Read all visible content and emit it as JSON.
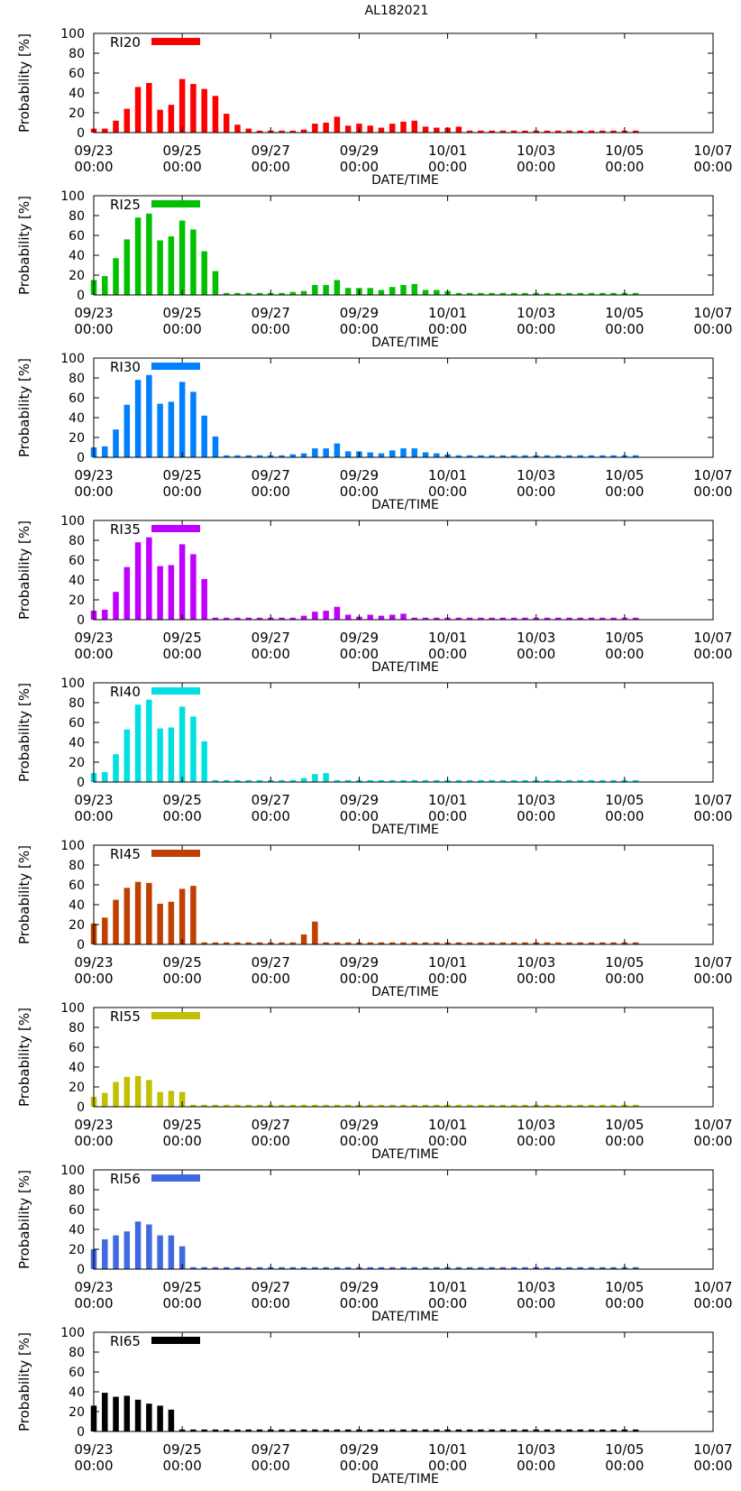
{
  "title": "AL182021",
  "chart_data": [
    {
      "type": "bar",
      "title": "RI20",
      "legend_label": "RI20",
      "color": "#ff0000",
      "xlabel": "DATE/TIME",
      "ylabel": "Probability [%]",
      "ylim": [
        0,
        100
      ],
      "yticks": [
        0,
        20,
        40,
        60,
        80,
        100
      ],
      "x_start_hours": 0,
      "x_range_hours": [
        0,
        336
      ],
      "bar_interval_hours": 6,
      "xticks": [
        {
          "hours": 0,
          "date": "09/23",
          "time": "00:00"
        },
        {
          "hours": 48,
          "date": "09/25",
          "time": "00:00"
        },
        {
          "hours": 96,
          "date": "09/27",
          "time": "00:00"
        },
        {
          "hours": 144,
          "date": "09/29",
          "time": "00:00"
        },
        {
          "hours": 192,
          "date": "10/01",
          "time": "00:00"
        },
        {
          "hours": 240,
          "date": "10/03",
          "time": "00:00"
        },
        {
          "hours": 288,
          "date": "10/05",
          "time": "00:00"
        },
        {
          "hours": 336,
          "date": "10/07",
          "time": "00:00"
        }
      ],
      "values": [
        4,
        4,
        12,
        24,
        46,
        50,
        23,
        28,
        54,
        49,
        44,
        37,
        19,
        8,
        4,
        2,
        2,
        2,
        2,
        3,
        9,
        10,
        16,
        7,
        9,
        7,
        5,
        9,
        11,
        12,
        6,
        5,
        5,
        6,
        2,
        2,
        2,
        2,
        2,
        2,
        2,
        2,
        2,
        2,
        2,
        2,
        2,
        2,
        2,
        2
      ]
    },
    {
      "type": "bar",
      "title": "RI25",
      "legend_label": "RI25",
      "color": "#00c000",
      "xlabel": "DATE/TIME",
      "ylabel": "Probability [%]",
      "ylim": [
        0,
        100
      ],
      "yticks": [
        0,
        20,
        40,
        60,
        80,
        100
      ],
      "x_start_hours": 0,
      "x_range_hours": [
        0,
        336
      ],
      "bar_interval_hours": 6,
      "xticks": [
        {
          "hours": 0,
          "date": "09/23",
          "time": "00:00"
        },
        {
          "hours": 48,
          "date": "09/25",
          "time": "00:00"
        },
        {
          "hours": 96,
          "date": "09/27",
          "time": "00:00"
        },
        {
          "hours": 144,
          "date": "09/29",
          "time": "00:00"
        },
        {
          "hours": 192,
          "date": "10/01",
          "time": "00:00"
        },
        {
          "hours": 240,
          "date": "10/03",
          "time": "00:00"
        },
        {
          "hours": 288,
          "date": "10/05",
          "time": "00:00"
        },
        {
          "hours": 336,
          "date": "10/07",
          "time": "00:00"
        }
      ],
      "values": [
        15,
        19,
        37,
        56,
        78,
        82,
        55,
        59,
        75,
        66,
        44,
        24,
        2,
        2,
        2,
        2,
        2,
        2,
        3,
        4,
        10,
        10,
        15,
        7,
        7,
        7,
        5,
        8,
        10,
        11,
        5,
        5,
        4,
        2,
        2,
        2,
        2,
        2,
        2,
        2,
        2,
        2,
        2,
        2,
        2,
        2,
        2,
        2,
        2,
        2
      ]
    },
    {
      "type": "bar",
      "title": "RI30",
      "legend_label": "RI30",
      "color": "#0080ff",
      "xlabel": "DATE/TIME",
      "ylabel": "Probability [%]",
      "ylim": [
        0,
        100
      ],
      "yticks": [
        0,
        20,
        40,
        60,
        80,
        100
      ],
      "x_start_hours": 0,
      "x_range_hours": [
        0,
        336
      ],
      "bar_interval_hours": 6,
      "xticks": [
        {
          "hours": 0,
          "date": "09/23",
          "time": "00:00"
        },
        {
          "hours": 48,
          "date": "09/25",
          "time": "00:00"
        },
        {
          "hours": 96,
          "date": "09/27",
          "time": "00:00"
        },
        {
          "hours": 144,
          "date": "09/29",
          "time": "00:00"
        },
        {
          "hours": 192,
          "date": "10/01",
          "time": "00:00"
        },
        {
          "hours": 240,
          "date": "10/03",
          "time": "00:00"
        },
        {
          "hours": 288,
          "date": "10/05",
          "time": "00:00"
        },
        {
          "hours": 336,
          "date": "10/07",
          "time": "00:00"
        }
      ],
      "values": [
        10,
        11,
        28,
        53,
        78,
        83,
        54,
        56,
        76,
        66,
        42,
        21,
        2,
        2,
        2,
        2,
        2,
        2,
        3,
        4,
        9,
        9,
        14,
        6,
        6,
        5,
        4,
        7,
        9,
        9,
        5,
        4,
        3,
        2,
        2,
        2,
        2,
        2,
        2,
        2,
        2,
        2,
        2,
        2,
        2,
        2,
        2,
        2,
        2,
        2
      ]
    },
    {
      "type": "bar",
      "title": "RI35",
      "legend_label": "RI35",
      "color": "#c000ff",
      "xlabel": "DATE/TIME",
      "ylabel": "Probability [%]",
      "ylim": [
        0,
        100
      ],
      "yticks": [
        0,
        20,
        40,
        60,
        80,
        100
      ],
      "x_start_hours": 0,
      "x_range_hours": [
        0,
        336
      ],
      "bar_interval_hours": 6,
      "xticks": [
        {
          "hours": 0,
          "date": "09/23",
          "time": "00:00"
        },
        {
          "hours": 48,
          "date": "09/25",
          "time": "00:00"
        },
        {
          "hours": 96,
          "date": "09/27",
          "time": "00:00"
        },
        {
          "hours": 144,
          "date": "09/29",
          "time": "00:00"
        },
        {
          "hours": 192,
          "date": "10/01",
          "time": "00:00"
        },
        {
          "hours": 240,
          "date": "10/03",
          "time": "00:00"
        },
        {
          "hours": 288,
          "date": "10/05",
          "time": "00:00"
        },
        {
          "hours": 336,
          "date": "10/07",
          "time": "00:00"
        }
      ],
      "values": [
        9,
        10,
        28,
        53,
        78,
        83,
        54,
        55,
        76,
        66,
        41,
        2,
        2,
        2,
        2,
        2,
        2,
        2,
        2,
        4,
        8,
        9,
        13,
        5,
        3,
        5,
        4,
        5,
        6,
        2,
        2,
        2,
        2,
        2,
        2,
        2,
        2,
        2,
        2,
        2,
        2,
        2,
        2,
        2,
        2,
        2,
        2,
        2,
        2,
        2
      ]
    },
    {
      "type": "bar",
      "title": "RI40",
      "legend_label": "RI40",
      "color": "#00e0e0",
      "xlabel": "DATE/TIME",
      "ylabel": "Probability [%]",
      "ylim": [
        0,
        100
      ],
      "yticks": [
        0,
        20,
        40,
        60,
        80,
        100
      ],
      "x_start_hours": 0,
      "x_range_hours": [
        0,
        336
      ],
      "bar_interval_hours": 6,
      "xticks": [
        {
          "hours": 0,
          "date": "09/23",
          "time": "00:00"
        },
        {
          "hours": 48,
          "date": "09/25",
          "time": "00:00"
        },
        {
          "hours": 96,
          "date": "09/27",
          "time": "00:00"
        },
        {
          "hours": 144,
          "date": "09/29",
          "time": "00:00"
        },
        {
          "hours": 192,
          "date": "10/01",
          "time": "00:00"
        },
        {
          "hours": 240,
          "date": "10/03",
          "time": "00:00"
        },
        {
          "hours": 288,
          "date": "10/05",
          "time": "00:00"
        },
        {
          "hours": 336,
          "date": "10/07",
          "time": "00:00"
        }
      ],
      "values": [
        9,
        10,
        28,
        53,
        78,
        83,
        54,
        55,
        76,
        66,
        41,
        2,
        2,
        2,
        2,
        2,
        2,
        2,
        2,
        4,
        8,
        9,
        2,
        2,
        2,
        2,
        2,
        2,
        2,
        2,
        2,
        2,
        2,
        2,
        2,
        2,
        2,
        2,
        2,
        2,
        2,
        2,
        2,
        2,
        2,
        2,
        2,
        2,
        2,
        2
      ]
    },
    {
      "type": "bar",
      "title": "RI45",
      "legend_label": "RI45",
      "color": "#c04000",
      "xlabel": "DATE/TIME",
      "ylabel": "Probability [%]",
      "ylim": [
        0,
        100
      ],
      "yticks": [
        0,
        20,
        40,
        60,
        80,
        100
      ],
      "x_start_hours": 0,
      "x_range_hours": [
        0,
        336
      ],
      "bar_interval_hours": 6,
      "xticks": [
        {
          "hours": 0,
          "date": "09/23",
          "time": "00:00"
        },
        {
          "hours": 48,
          "date": "09/25",
          "time": "00:00"
        },
        {
          "hours": 96,
          "date": "09/27",
          "time": "00:00"
        },
        {
          "hours": 144,
          "date": "09/29",
          "time": "00:00"
        },
        {
          "hours": 192,
          "date": "10/01",
          "time": "00:00"
        },
        {
          "hours": 240,
          "date": "10/03",
          "time": "00:00"
        },
        {
          "hours": 288,
          "date": "10/05",
          "time": "00:00"
        },
        {
          "hours": 336,
          "date": "10/07",
          "time": "00:00"
        }
      ],
      "values": [
        21,
        27,
        45,
        57,
        63,
        62,
        41,
        43,
        56,
        59,
        2,
        2,
        2,
        2,
        2,
        2,
        2,
        2,
        2,
        10,
        23,
        2,
        2,
        2,
        2,
        2,
        2,
        2,
        2,
        2,
        2,
        2,
        2,
        2,
        2,
        2,
        2,
        2,
        2,
        2,
        2,
        2,
        2,
        2,
        2,
        2,
        2,
        2,
        2,
        2
      ]
    },
    {
      "type": "bar",
      "title": "RI55",
      "legend_label": "RI55",
      "color": "#c0c000",
      "xlabel": "DATE/TIME",
      "ylabel": "Probability [%]",
      "ylim": [
        0,
        100
      ],
      "yticks": [
        0,
        20,
        40,
        60,
        80,
        100
      ],
      "x_start_hours": 0,
      "x_range_hours": [
        0,
        336
      ],
      "bar_interval_hours": 6,
      "xticks": [
        {
          "hours": 0,
          "date": "09/23",
          "time": "00:00"
        },
        {
          "hours": 48,
          "date": "09/25",
          "time": "00:00"
        },
        {
          "hours": 96,
          "date": "09/27",
          "time": "00:00"
        },
        {
          "hours": 144,
          "date": "09/29",
          "time": "00:00"
        },
        {
          "hours": 192,
          "date": "10/01",
          "time": "00:00"
        },
        {
          "hours": 240,
          "date": "10/03",
          "time": "00:00"
        },
        {
          "hours": 288,
          "date": "10/05",
          "time": "00:00"
        },
        {
          "hours": 336,
          "date": "10/07",
          "time": "00:00"
        }
      ],
      "values": [
        10,
        14,
        25,
        30,
        31,
        27,
        15,
        16,
        15,
        2,
        2,
        2,
        2,
        2,
        2,
        2,
        2,
        2,
        2,
        2,
        2,
        2,
        2,
        2,
        2,
        2,
        2,
        2,
        2,
        2,
        2,
        2,
        2,
        2,
        2,
        2,
        2,
        2,
        2,
        2,
        2,
        2,
        2,
        2,
        2,
        2,
        2,
        2,
        2,
        2
      ]
    },
    {
      "type": "bar",
      "title": "RI56",
      "legend_label": "RI56",
      "color": "#4169e1",
      "xlabel": "DATE/TIME",
      "ylabel": "Probability [%]",
      "ylim": [
        0,
        100
      ],
      "yticks": [
        0,
        20,
        40,
        60,
        80,
        100
      ],
      "x_start_hours": 0,
      "x_range_hours": [
        0,
        336
      ],
      "bar_interval_hours": 6,
      "xticks": [
        {
          "hours": 0,
          "date": "09/23",
          "time": "00:00"
        },
        {
          "hours": 48,
          "date": "09/25",
          "time": "00:00"
        },
        {
          "hours": 96,
          "date": "09/27",
          "time": "00:00"
        },
        {
          "hours": 144,
          "date": "09/29",
          "time": "00:00"
        },
        {
          "hours": 192,
          "date": "10/01",
          "time": "00:00"
        },
        {
          "hours": 240,
          "date": "10/03",
          "time": "00:00"
        },
        {
          "hours": 288,
          "date": "10/05",
          "time": "00:00"
        },
        {
          "hours": 336,
          "date": "10/07",
          "time": "00:00"
        }
      ],
      "values": [
        20,
        30,
        34,
        38,
        48,
        45,
        34,
        34,
        23,
        2,
        2,
        2,
        2,
        2,
        2,
        2,
        2,
        2,
        2,
        2,
        2,
        2,
        2,
        2,
        2,
        2,
        2,
        2,
        2,
        2,
        2,
        2,
        2,
        2,
        2,
        2,
        2,
        2,
        2,
        2,
        2,
        2,
        2,
        2,
        2,
        2,
        2,
        2,
        2,
        2
      ]
    },
    {
      "type": "bar",
      "title": "RI65",
      "legend_label": "RI65",
      "color": "#000000",
      "xlabel": "DATE/TIME",
      "ylabel": "Probability [%]",
      "ylim": [
        0,
        100
      ],
      "yticks": [
        0,
        20,
        40,
        60,
        80,
        100
      ],
      "x_start_hours": 0,
      "x_range_hours": [
        0,
        336
      ],
      "bar_interval_hours": 6,
      "xticks": [
        {
          "hours": 0,
          "date": "09/23",
          "time": "00:00"
        },
        {
          "hours": 48,
          "date": "09/25",
          "time": "00:00"
        },
        {
          "hours": 96,
          "date": "09/27",
          "time": "00:00"
        },
        {
          "hours": 144,
          "date": "09/29",
          "time": "00:00"
        },
        {
          "hours": 192,
          "date": "10/01",
          "time": "00:00"
        },
        {
          "hours": 240,
          "date": "10/03",
          "time": "00:00"
        },
        {
          "hours": 288,
          "date": "10/05",
          "time": "00:00"
        },
        {
          "hours": 336,
          "date": "10/07",
          "time": "00:00"
        }
      ],
      "values": [
        26,
        39,
        35,
        36,
        32,
        28,
        26,
        22,
        2,
        2,
        2,
        2,
        2,
        2,
        2,
        2,
        2,
        2,
        2,
        2,
        2,
        2,
        2,
        2,
        2,
        2,
        2,
        2,
        2,
        2,
        2,
        2,
        2,
        2,
        2,
        2,
        2,
        2,
        2,
        2,
        2,
        2,
        2,
        2,
        2,
        2,
        2,
        2,
        2,
        2
      ]
    }
  ]
}
